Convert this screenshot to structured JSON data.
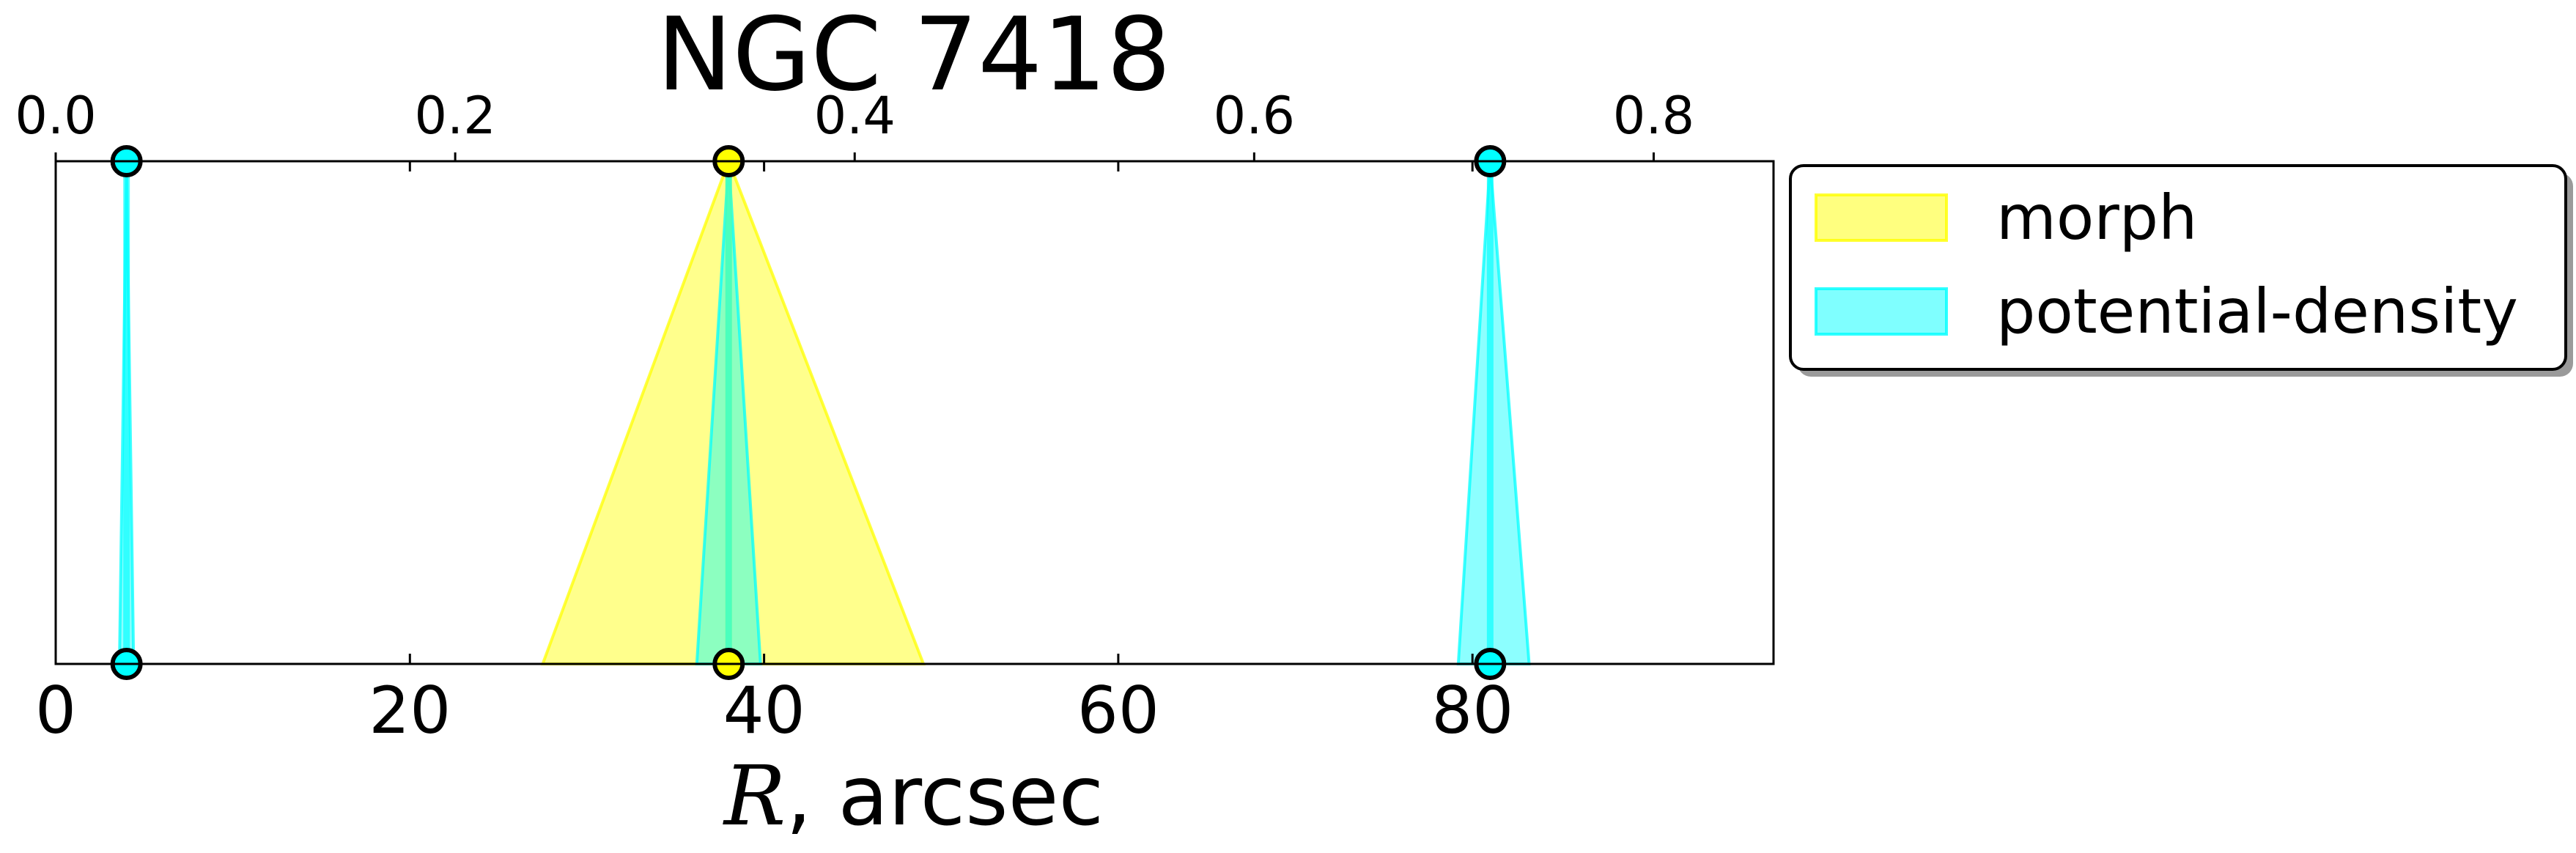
{
  "chart_data": {
    "type": "area",
    "title": "NGC 7418",
    "xlabel_symbol": "R",
    "xlabel_rest": ", arcsec",
    "xlim": [
      0,
      97
    ],
    "ylim": [
      0,
      1
    ],
    "bottom_ticks": [
      0,
      20,
      40,
      60,
      80
    ],
    "bottom_tick_labels": [
      "0",
      "20",
      "40",
      "60",
      "80"
    ],
    "top_ticks": [
      0.0,
      0.2,
      0.4,
      0.6,
      0.8
    ],
    "top_tick_labels": [
      "0.0",
      "0.2",
      "0.4",
      "0.6",
      "0.8"
    ],
    "top_axis_range": [
      0.0,
      0.86
    ],
    "grid": false,
    "legend_position": "outside-right-top",
    "series": [
      {
        "name": "morph",
        "color": "#ffff00",
        "markers": [
          38.0
        ],
        "bands": [
          {
            "center": 38.0,
            "lo": 27.5,
            "hi": 49.0
          }
        ]
      },
      {
        "name": "potential-density",
        "color": "#00ffff",
        "markers": [
          4.0,
          81.0
        ],
        "bands": [
          {
            "center": 4.0,
            "lo": 3.6,
            "hi": 4.4
          },
          {
            "center": 38.0,
            "lo": 36.2,
            "hi": 39.8
          },
          {
            "center": 81.0,
            "lo": 79.2,
            "hi": 83.2
          }
        ]
      }
    ]
  }
}
